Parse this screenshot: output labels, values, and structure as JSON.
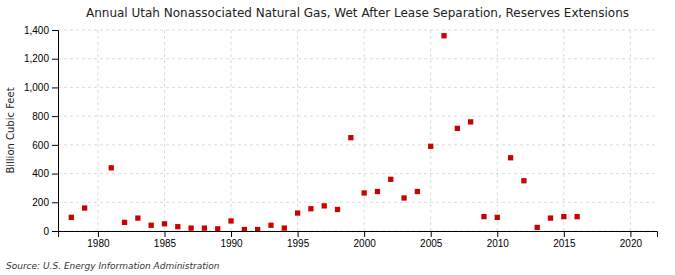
{
  "chart_data": {
    "type": "scatter",
    "title": "Annual Utah Nonassociated Natural Gas, Wet After Lease Separation, Reserves Extensions",
    "ylabel": "Billion Cubic Feet",
    "source": "Source: U.S. Energy Information Administration",
    "color": "#cc0000",
    "marker": "square",
    "grid": true,
    "x": [
      1978,
      1979,
      1981,
      1982,
      1983,
      1984,
      1985,
      1986,
      1987,
      1988,
      1989,
      1990,
      1991,
      1992,
      1993,
      1994,
      1995,
      1996,
      1997,
      1998,
      1999,
      2000,
      2001,
      2002,
      2003,
      2004,
      2005,
      2006,
      2007,
      2008,
      2009,
      2010,
      2011,
      2012,
      2013,
      2014,
      2015,
      2016
    ],
    "values": [
      95,
      160,
      440,
      60,
      90,
      40,
      50,
      30,
      20,
      20,
      15,
      70,
      10,
      10,
      40,
      20,
      125,
      155,
      175,
      150,
      650,
      265,
      275,
      360,
      230,
      275,
      590,
      1360,
      715,
      760,
      100,
      95,
      510,
      350,
      25,
      90,
      100,
      100
    ],
    "xlim": [
      1977,
      2022
    ],
    "ylim": [
      0,
      1400
    ],
    "xticks": [
      1980,
      1985,
      1990,
      1995,
      2000,
      2005,
      2010,
      2015,
      2020
    ],
    "yticks": [
      0,
      200,
      400,
      600,
      800,
      {
        "value": 1000,
        "label": "1,000"
      },
      {
        "value": 1200,
        "label": "1,200"
      },
      {
        "value": 1400,
        "label": "1,400"
      }
    ]
  }
}
